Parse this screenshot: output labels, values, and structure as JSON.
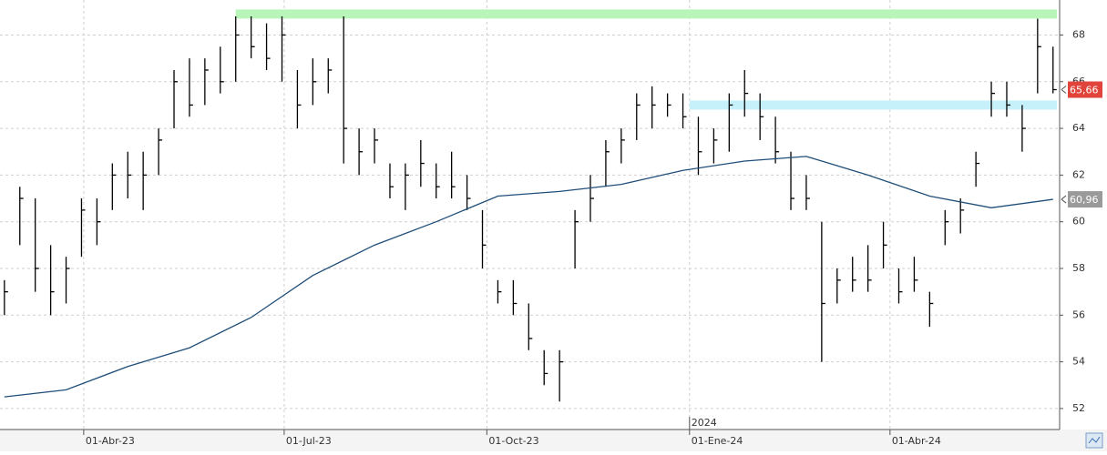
{
  "chart_data": {
    "type": "ohlc",
    "xlim": [
      "2023-02-22",
      "2024-06-17"
    ],
    "ylim": [
      51.1,
      69.5
    ],
    "yticks": [
      52,
      54,
      56,
      58,
      60,
      62,
      64,
      66,
      68
    ],
    "xticks": [
      {
        "value": "2023-04-01",
        "label": "01-Abr-23"
      },
      {
        "value": "2023-07-01",
        "label": "01-Jul-23"
      },
      {
        "value": "2023-10-01",
        "label": "01-Oct-23"
      },
      {
        "value": "2024-01-01",
        "label": "01-Ene-24"
      },
      {
        "value": "2024-04-01",
        "label": "01-Abr-24"
      }
    ],
    "year_marks": [
      {
        "value": "2024-01-01",
        "label": "2024"
      }
    ],
    "grid": true,
    "bands": [
      {
        "value": 68.9,
        "from": "2023-06-09",
        "color": "#b8f5b8"
      },
      {
        "value": 65,
        "from": "2024-01-01",
        "color": "#c6f1fa"
      }
    ],
    "series": [
      {
        "type": "ohlc",
        "color": "#000000",
        "last_value_label": "65,66",
        "label_color": "#e0443a",
        "x": [
          "2023-02-24",
          "2023-03-03",
          "2023-03-10",
          "2023-03-17",
          "2023-03-24",
          "2023-03-31",
          "2023-04-07",
          "2023-04-14",
          "2023-04-21",
          "2023-04-28",
          "2023-05-05",
          "2023-05-12",
          "2023-05-19",
          "2023-05-26",
          "2023-06-02",
          "2023-06-09",
          "2023-06-16",
          "2023-06-23",
          "2023-06-30",
          "2023-07-07",
          "2023-07-14",
          "2023-07-21",
          "2023-07-28",
          "2023-08-04",
          "2023-08-11",
          "2023-08-18",
          "2023-08-25",
          "2023-09-01",
          "2023-09-08",
          "2023-09-15",
          "2023-09-22",
          "2023-09-29",
          "2023-10-06",
          "2023-10-13",
          "2023-10-20",
          "2023-10-27",
          "2023-11-03",
          "2023-11-10",
          "2023-11-17",
          "2023-11-24",
          "2023-12-01",
          "2023-12-08",
          "2023-12-15",
          "2023-12-22",
          "2023-12-29",
          "2024-01-05",
          "2024-01-12",
          "2024-01-19",
          "2024-01-26",
          "2024-02-02",
          "2024-02-09",
          "2024-02-16",
          "2024-02-23",
          "2024-03-01",
          "2024-03-08",
          "2024-03-15",
          "2024-03-22",
          "2024-03-29",
          "2024-04-05",
          "2024-04-12",
          "2024-04-19",
          "2024-04-26",
          "2024-05-03",
          "2024-05-10",
          "2024-05-17",
          "2024-05-24",
          "2024-05-31",
          "2024-06-07",
          "2024-06-14"
        ],
        "high": [
          57.5,
          61.5,
          61,
          59,
          58.5,
          61,
          61,
          62.5,
          63,
          63,
          64,
          66.5,
          67,
          67,
          67.5,
          68.8,
          68.8,
          68.5,
          68.8,
          66.5,
          67,
          67,
          68.8,
          64,
          64,
          62.5,
          62.5,
          63.5,
          62.5,
          63,
          62,
          60.5,
          57.5,
          57.5,
          56.5,
          54.5,
          54.5,
          60.5,
          62,
          63.5,
          64,
          65.5,
          65.8,
          65.5,
          65.5,
          64.5,
          64,
          65.5,
          66.5,
          65.5,
          64.5,
          63,
          62,
          60,
          58,
          58.5,
          59,
          60,
          58,
          58.5,
          57,
          60.5,
          61,
          63,
          66,
          66,
          65,
          68.7,
          67.5
        ],
        "low": [
          56,
          59,
          57,
          56,
          56.5,
          58.5,
          59,
          60.5,
          61,
          60.5,
          62,
          64,
          64.5,
          65,
          65.5,
          66,
          67,
          66.5,
          66,
          64,
          65,
          65.5,
          62.5,
          62,
          62.5,
          61,
          60.5,
          61.5,
          61,
          61,
          60.5,
          58,
          56.5,
          56,
          54.5,
          53,
          52.3,
          58,
          60,
          61.5,
          62.5,
          63.5,
          64,
          64.5,
          64,
          62,
          62.5,
          63,
          64.5,
          63.5,
          62.5,
          60.5,
          60.5,
          54,
          56.5,
          57,
          57,
          58,
          56.5,
          57,
          55.5,
          59,
          59.5,
          61.5,
          64.5,
          64.5,
          63,
          65.5,
          65.5
        ],
        "close": [
          57,
          61,
          58,
          57,
          58,
          60.5,
          60,
          62,
          62,
          62,
          63.5,
          66,
          65,
          66.5,
          66,
          68,
          67.5,
          67,
          68,
          65,
          66,
          66.5,
          64,
          63,
          63.5,
          61.5,
          62,
          62.5,
          61.5,
          61.5,
          61,
          59,
          57,
          56.5,
          55,
          53.5,
          54,
          60,
          61,
          63,
          63.5,
          65,
          65,
          65,
          64.5,
          63,
          63.5,
          65,
          65.5,
          64.5,
          63,
          61,
          61,
          56.5,
          57.5,
          57.5,
          57.5,
          59,
          57,
          57.5,
          56.5,
          60,
          60.5,
          62.5,
          65.5,
          65,
          64,
          67.5,
          65.66
        ]
      },
      {
        "type": "line",
        "color": "#1f4e79",
        "last_value_label": "60,96",
        "label_color": "#9a9a9a",
        "x": [
          "2023-02-24",
          "2023-03-24",
          "2023-04-21",
          "2023-05-19",
          "2023-06-16",
          "2023-07-14",
          "2023-08-11",
          "2023-09-08",
          "2023-10-06",
          "2023-11-03",
          "2023-12-01",
          "2023-12-29",
          "2024-01-26",
          "2024-02-23",
          "2024-03-22",
          "2024-04-19",
          "2024-05-17",
          "2024-06-14"
        ],
        "values": [
          52.5,
          52.8,
          53.8,
          54.6,
          55.9,
          57.7,
          59,
          60,
          61.1,
          61.3,
          61.6,
          62.2,
          62.6,
          62.8,
          62,
          61.1,
          60.6,
          60.96
        ]
      }
    ]
  }
}
